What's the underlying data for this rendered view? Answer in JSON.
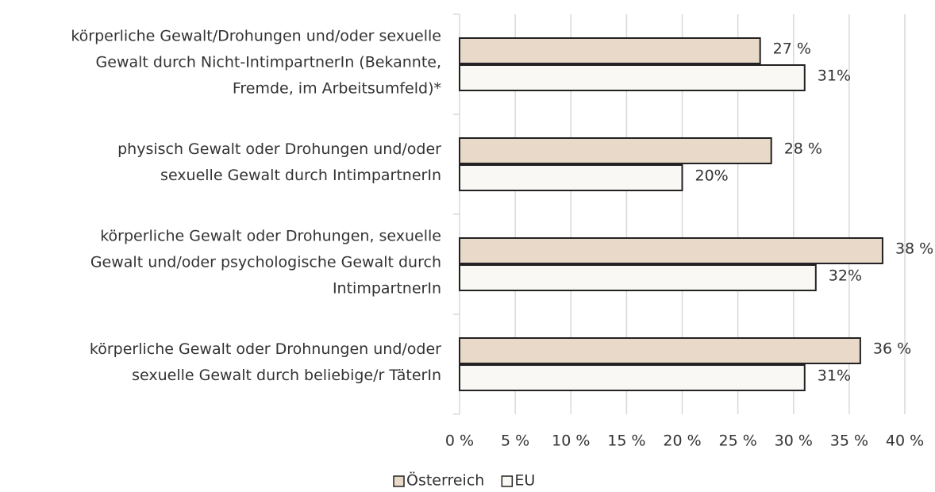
{
  "chart_data": {
    "type": "hbar",
    "categories": [
      [
        "körperliche Gewalt/Drohungen und/oder sexuelle",
        "Gewalt durch Nicht-IntimpartnerIn (Bekannte,",
        "Fremde, im Arbeitsumfeld)*"
      ],
      [
        "physisch Gewalt oder Drohungen und/oder",
        "sexuelle Gewalt durch IntimpartnerIn"
      ],
      [
        "körperliche Gewalt oder Drohungen, sexuelle",
        "Gewalt und/oder psychologische Gewalt durch",
        "IntimpartnerIn"
      ],
      [
        "körperliche Gewalt oder Drohnungen und/oder",
        "sexuelle Gewalt durch beliebige/r TäterIn"
      ]
    ],
    "series": [
      {
        "name": "Österreich",
        "color": "#e8d9c9",
        "values": [
          27,
          28,
          38,
          36
        ],
        "value_labels": [
          "27 %",
          "28 %",
          "38 %",
          "36 %"
        ]
      },
      {
        "name": "EU",
        "color": "#faf8f4",
        "values": [
          31,
          20,
          32,
          31
        ],
        "value_labels": [
          "31%",
          "20%",
          "32%",
          "31%"
        ]
      }
    ],
    "xlim": [
      0,
      40
    ],
    "xticks": [
      {
        "value": 0,
        "label": "0 %"
      },
      {
        "value": 5,
        "label": "5 %"
      },
      {
        "value": 10,
        "label": "10 %"
      },
      {
        "value": 15,
        "label": "15 %"
      },
      {
        "value": 20,
        "label": "20 %"
      },
      {
        "value": 25,
        "label": "25 %"
      },
      {
        "value": 30,
        "label": "30 %"
      },
      {
        "value": 35,
        "label": "35 %"
      },
      {
        "value": 40,
        "label": "40 %"
      }
    ],
    "grid": true,
    "legend": "bottom"
  }
}
